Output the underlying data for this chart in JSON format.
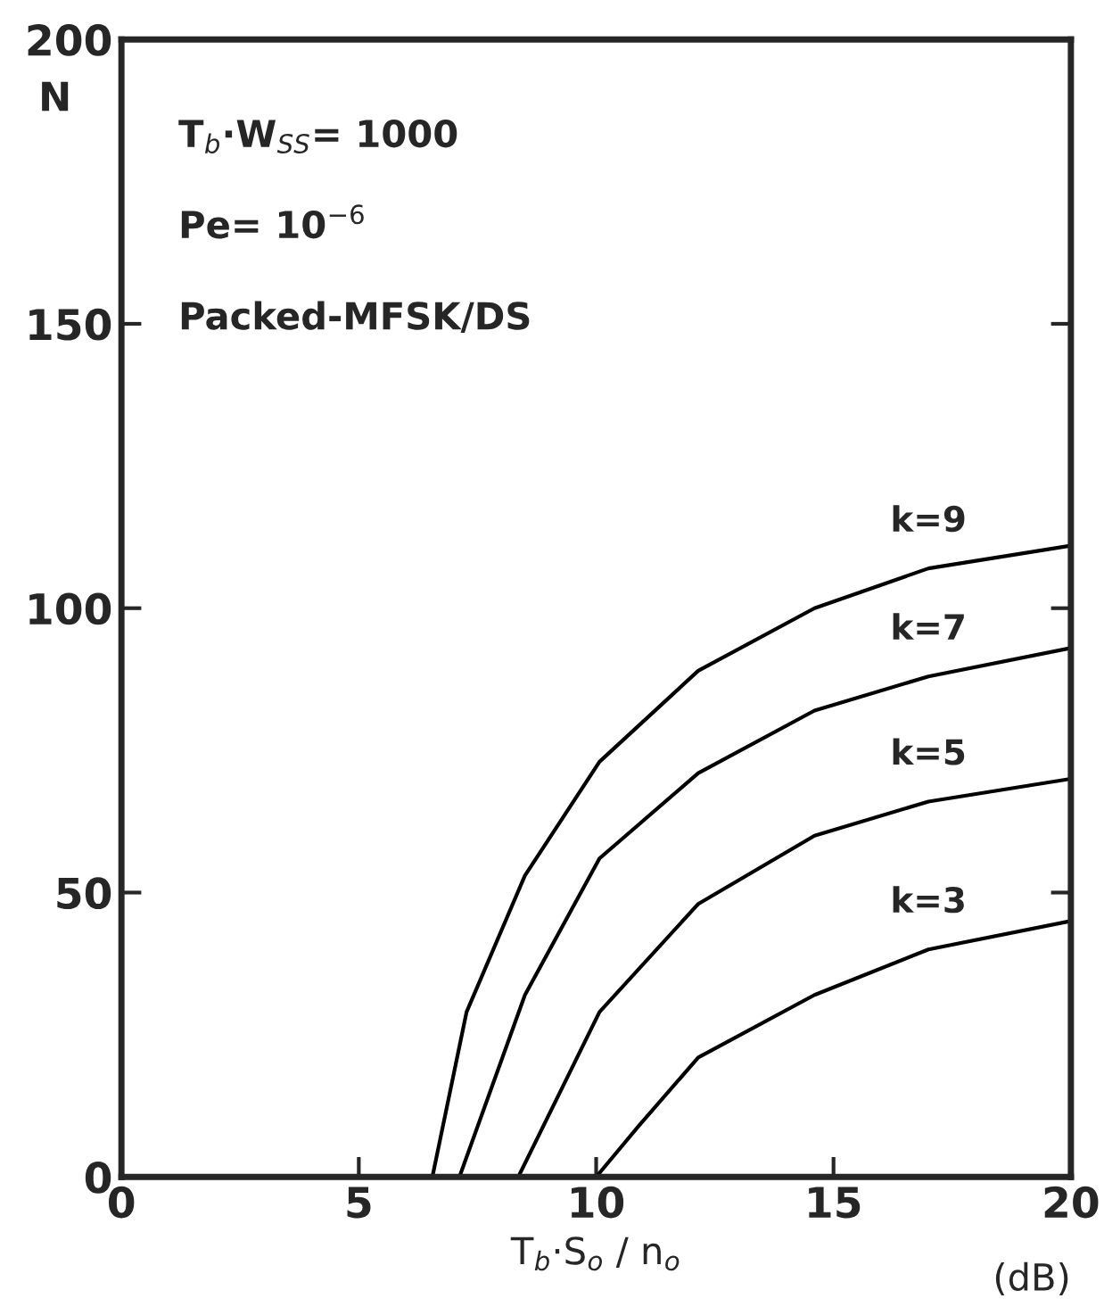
{
  "chart_data": {
    "type": "line",
    "xlabel": "T$_{b}$·S$_{o}$ / n$_{o}$",
    "ylabel": "N",
    "annotations": [
      "T$_{b}$·W$_{SS}$= 1000",
      "Pe= 10$^{−6}$",
      "Packed-MFSK/DS",
      "(dB)"
    ],
    "xlim": [
      0,
      20
    ],
    "ylim": [
      0,
      200
    ],
    "xticks": [
      0,
      5,
      10,
      15,
      20
    ],
    "yticks": [
      0,
      50,
      100,
      150,
      200
    ],
    "grid": false,
    "legend": false,
    "marker": "none",
    "line_style": "solid",
    "series": [
      {
        "name": "k=9",
        "color": "#000000",
        "x": [
          6.55,
          7.27,
          8.5,
          10.07,
          12.15,
          14.6,
          17.0,
          20.0
        ],
        "values": [
          0,
          29,
          53,
          73,
          89,
          100,
          107,
          111
        ]
      },
      {
        "name": "k=7",
        "color": "#000000",
        "x": [
          7.12,
          8.5,
          10.07,
          12.15,
          14.6,
          17.0,
          20.0
        ],
        "values": [
          0,
          32,
          56,
          71,
          82,
          88,
          93
        ]
      },
      {
        "name": "k=5",
        "color": "#000000",
        "x": [
          8.36,
          10.07,
          12.15,
          14.6,
          17.0,
          20.0
        ],
        "values": [
          0,
          29,
          48,
          60,
          66,
          70
        ]
      },
      {
        "name": "k=3",
        "color": "#000000",
        "x": [
          10.0,
          10.9,
          12.15,
          14.6,
          17.0,
          20.0
        ],
        "values": [
          0,
          9,
          21,
          32,
          40,
          45
        ]
      }
    ]
  }
}
